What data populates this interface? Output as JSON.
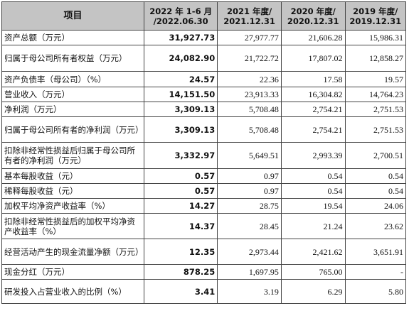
{
  "header": {
    "item": "项目",
    "col1_line1": "2022 年 1-6 月",
    "col1_line2": "/2022.06.30",
    "col2_line1": "2021 年度/",
    "col2_line2": "2021.12.31",
    "col3_line1": "2020 年度/",
    "col3_line2": "2020.12.31",
    "col4_line1": "2019 年度/",
    "col4_line2": "2019.12.31"
  },
  "rows": [
    {
      "label": "资产总额（万元）",
      "v1": "31,927.73",
      "v2": "27,977.77",
      "v3": "21,606.28",
      "v4": "15,986.31"
    },
    {
      "label": "归属于母公司所有者权益（万元）",
      "v1": "24,082.90",
      "v2": "21,722.72",
      "v3": "17,807.02",
      "v4": "12,858.27"
    },
    {
      "label": "资产负债率（母公司）（%）",
      "v1": "24.57",
      "v2": "22.36",
      "v3": "17.58",
      "v4": "19.57"
    },
    {
      "label": "营业收入（万元）",
      "v1": "14,151.50",
      "v2": "23,913.33",
      "v3": "16,304.82",
      "v4": "14,764.23"
    },
    {
      "label": "净利润（万元）",
      "v1": "3,309.13",
      "v2": "5,708.48",
      "v3": "2,754.21",
      "v4": "2,751.53"
    },
    {
      "label": "归属于母公司所有者的净利润（万元）",
      "v1": "3,309.13",
      "v2": "5,708.48",
      "v3": "2,754.21",
      "v4": "2,751.53"
    },
    {
      "label": "扣除非经常性损益后归属于母公司所有者的净利润（万元）",
      "v1": "3,332.97",
      "v2": "5,649.51",
      "v3": "2,993.39",
      "v4": "2,700.51"
    },
    {
      "label": "基本每股收益（元）",
      "v1": "0.57",
      "v2": "0.97",
      "v3": "0.54",
      "v4": "0.54"
    },
    {
      "label": "稀释每股收益（元）",
      "v1": "0.57",
      "v2": "0.97",
      "v3": "0.54",
      "v4": "0.54"
    },
    {
      "label": "加权平均净资产收益率（%）",
      "v1": "14.27",
      "v2": "28.75",
      "v3": "19.54",
      "v4": "24.06"
    },
    {
      "label": "扣除非经常性损益后的加权平均净资产收益率（%）",
      "v1": "14.37",
      "v2": "28.45",
      "v3": "21.24",
      "v4": "23.62"
    },
    {
      "label": "经营活动产生的现金流量净额（万元）",
      "v1": "12.35",
      "v2": "2,973.44",
      "v3": "2,421.62",
      "v4": "3,651.91"
    },
    {
      "label": "现金分红（万元）",
      "v1": "878.25",
      "v2": "1,697.95",
      "v3": "765.00",
      "v4": "-"
    },
    {
      "label": "研发投入占营业收入的比例（%）",
      "v1": "3.41",
      "v2": "3.19",
      "v3": "6.29",
      "v4": "5.80"
    }
  ]
}
